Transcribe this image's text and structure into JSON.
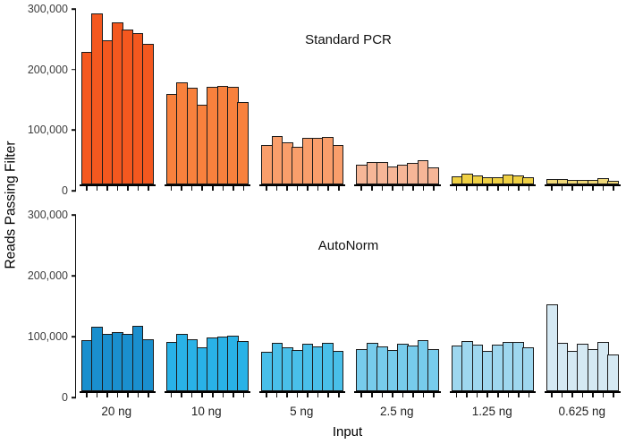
{
  "figure": {
    "background": "#ffffff"
  },
  "y_axis": {
    "title": "Reads Passing Filter",
    "ticks": [
      {
        "label": "300,000",
        "value": 300000
      },
      {
        "label": "200,000",
        "value": 200000
      },
      {
        "label": "100,000",
        "value": 100000
      },
      {
        "label": "0",
        "value": 0
      }
    ]
  },
  "x_axis": {
    "title": "Input",
    "group_labels": [
      "20 ng",
      "10 ng",
      "5 ng",
      "2.5 ng",
      "1.25 ng",
      "0.625 ng"
    ]
  },
  "chart_data": {
    "type": "bar",
    "ylabel": "Reads Passing Filter",
    "xlabel": "Input",
    "ylim": [
      0,
      300000
    ],
    "grid": false,
    "categories": [
      "20 ng",
      "10 ng",
      "5 ng",
      "2.5 ng",
      "1.25 ng",
      "0.625 ng"
    ],
    "facets": [
      {
        "title": "Standard PCR",
        "groups": [
          {
            "label": "20 ng",
            "color": "#F4581F",
            "values": [
              227000,
              293000,
              247000,
              277000,
              265000,
              258000,
              241000
            ]
          },
          {
            "label": "10 ng",
            "color": "#F8813D",
            "values": [
              155000,
              175000,
              165000,
              136000,
              167000,
              169000,
              167000,
              141000
            ]
          },
          {
            "label": "5 ng",
            "color": "#F99E6B",
            "values": [
              68000,
              82000,
              72000,
              65000,
              79000,
              80000,
              81000,
              67000
            ]
          },
          {
            "label": "2.5 ng",
            "color": "#F6B697",
            "values": [
              33000,
              39000,
              38000,
              31000,
              34000,
              36000,
              41000,
              29000
            ]
          },
          {
            "label": "1.25 ng",
            "color": "#EFD044",
            "values": [
              14000,
              18000,
              15000,
              13000,
              13000,
              17000,
              16000,
              13000
            ]
          },
          {
            "label": "0.625 ng",
            "color": "#F0D878",
            "values": [
              9000,
              9000,
              7000,
              8000,
              7000,
              10000,
              6000
            ]
          }
        ]
      },
      {
        "title": "AutoNorm",
        "groups": [
          {
            "label": "20 ng",
            "color": "#1A8FCE",
            "values": [
              87000,
              109000,
              98000,
              101000,
              98000,
              111000,
              88000
            ]
          },
          {
            "label": "10 ng",
            "color": "#29B2E7",
            "values": [
              84000,
              98000,
              88000,
              75000,
              92000,
              93000,
              94000,
              86000
            ]
          },
          {
            "label": "5 ng",
            "color": "#49BFE9",
            "values": [
              67000,
              82000,
              75000,
              70000,
              80000,
              76000,
              83000,
              68000
            ]
          },
          {
            "label": "2.5 ng",
            "color": "#77CCEC",
            "values": [
              71000,
              82000,
              76000,
              70000,
              80000,
              78000,
              87000,
              72000
            ]
          },
          {
            "label": "1.25 ng",
            "color": "#9ED7EF",
            "values": [
              78000,
              85000,
              79000,
              68000,
              79000,
              84000,
              84000,
              74000
            ]
          },
          {
            "label": "0.625 ng",
            "color": "#D5E9F3",
            "values": [
              148000,
              82000,
              68000,
              81000,
              71000,
              84000,
              62000
            ]
          }
        ]
      }
    ]
  }
}
